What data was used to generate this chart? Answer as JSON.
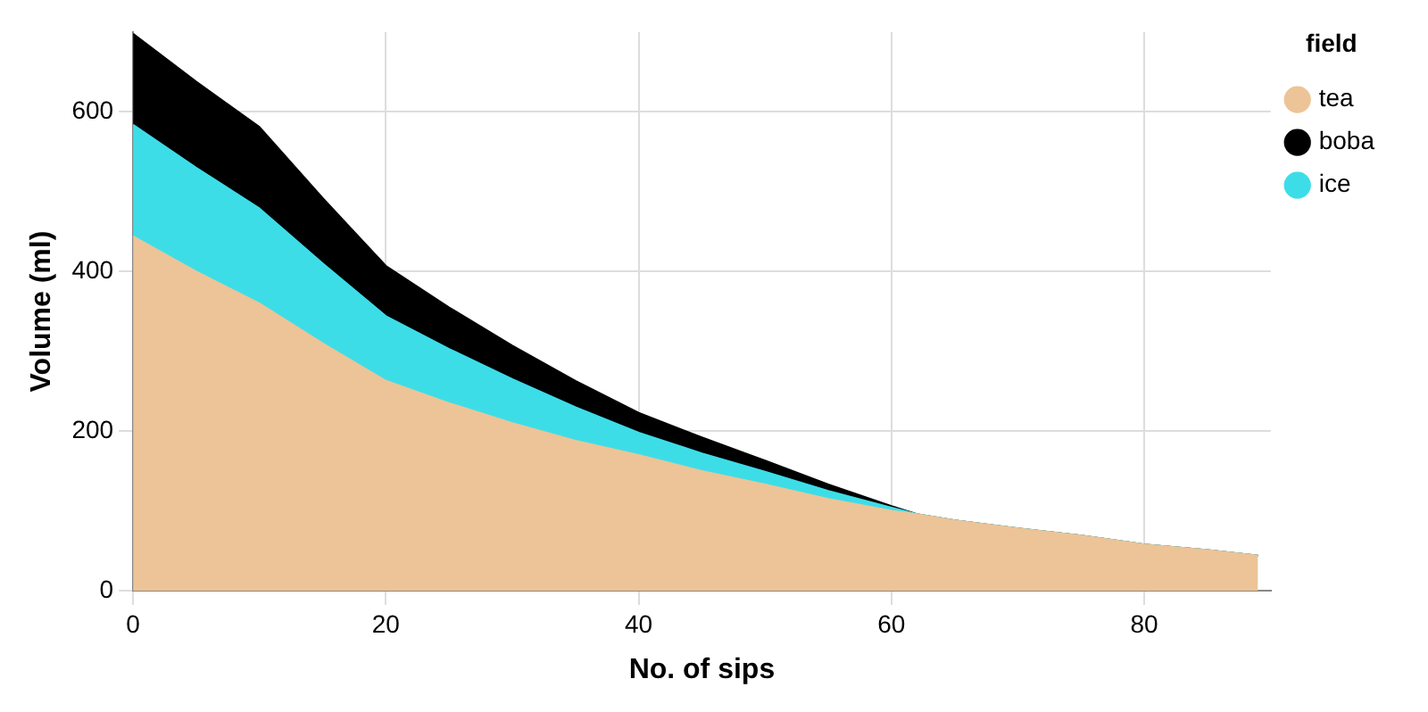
{
  "chart_data": {
    "type": "area",
    "stacked": true,
    "xlabel": "No. of sips",
    "ylabel": "Volume (ml)",
    "legend_title": "field",
    "legend": "top right",
    "grid": true,
    "x": [
      0,
      5,
      10,
      15,
      20,
      25,
      30,
      35,
      40,
      45,
      50,
      55,
      60,
      62,
      65,
      70,
      75,
      80,
      85,
      89
    ],
    "xlim": [
      0,
      90
    ],
    "xticks": [
      0,
      20,
      40,
      60,
      80
    ],
    "ylim": [
      0,
      700
    ],
    "yticks": [
      0,
      200,
      400,
      600
    ],
    "series": [
      {
        "name": "tea",
        "color": "#ecc497",
        "values": [
          444,
          400,
          360,
          310,
          263,
          235,
          210,
          188,
          170,
          150,
          133,
          115,
          100,
          96,
          88,
          78,
          69,
          58,
          51,
          44
        ]
      },
      {
        "name": "ice",
        "color": "#3ddde8",
        "values": [
          140,
          130,
          119,
          100,
          81,
          68,
          55,
          42,
          28,
          22,
          16,
          10,
          4,
          0,
          0,
          0,
          0,
          0,
          0,
          0
        ]
      },
      {
        "name": "boba",
        "color": "#000000",
        "values": [
          114,
          108,
          102,
          82,
          63,
          52,
          42,
          33,
          25,
          20,
          14,
          8,
          2,
          0,
          0,
          0,
          0,
          0,
          0,
          0
        ]
      }
    ]
  }
}
